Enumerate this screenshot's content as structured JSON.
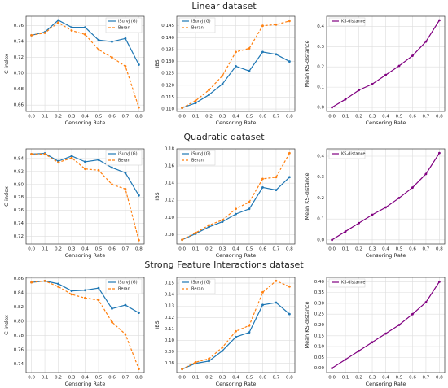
{
  "row_titles": [
    "Linear dataset",
    "Quadratic dataset",
    "Strong Feature Interactions dataset"
  ],
  "chart_data": [
    {
      "type": "line",
      "xlabel": "Censoring Rate",
      "ylabel": "C-index",
      "x": [
        0,
        0.1,
        0.2,
        0.3,
        0.4,
        0.5,
        0.6,
        0.7,
        0.8
      ],
      "xlim": [
        -0.04,
        0.84
      ],
      "xticks": [
        {
          "value": 0,
          "label": "0.0"
        },
        0.1,
        0.2,
        0.3,
        0.4,
        0.5,
        0.6,
        0.7,
        0.8
      ],
      "ylim": [
        0.652,
        0.772
      ],
      "yticks": [
        0.66,
        0.68,
        {
          "value": 0.7,
          "label": "0.70"
        },
        0.72,
        0.74,
        0.76
      ],
      "grid": true,
      "legend": "upper right",
      "series": [
        {
          "name": "iSurvJ (G)",
          "color": "#1f77b4",
          "linestyle": "solid",
          "values": [
            0.748,
            0.752,
            0.767,
            0.758,
            0.758,
            0.742,
            0.74,
            0.744,
            0.711
          ]
        },
        {
          "name": "Beran",
          "color": "#ff7f0e",
          "linestyle": "dashed",
          "values": [
            0.748,
            0.751,
            0.764,
            0.754,
            0.749,
            0.73,
            0.72,
            0.709,
            0.657
          ]
        }
      ]
    },
    {
      "type": "line",
      "xlabel": "Censoring Rate",
      "ylabel": "IBS",
      "x": [
        0,
        0.1,
        0.2,
        0.3,
        0.4,
        0.5,
        0.6,
        0.7,
        0.8
      ],
      "xlim": [
        -0.04,
        0.84
      ],
      "xticks": [
        {
          "value": 0,
          "label": "0.0"
        },
        0.1,
        0.2,
        0.3,
        0.4,
        0.5,
        0.6,
        0.7,
        0.8
      ],
      "ylim": [
        0.109,
        0.149
      ],
      "yticks": [
        {
          "value": 0.11,
          "label": "0.110"
        },
        0.115,
        {
          "value": 0.12,
          "label": "0.120"
        },
        0.125,
        {
          "value": 0.13,
          "label": "0.130"
        },
        0.135,
        {
          "value": 0.14,
          "label": "0.140"
        },
        0.145
      ],
      "grid": true,
      "legend": "upper left",
      "series": [
        {
          "name": "iSurvJ (G)",
          "color": "#1f77b4",
          "linestyle": "solid",
          "values": [
            0.1105,
            0.1125,
            0.116,
            0.1205,
            0.128,
            0.126,
            0.134,
            0.133,
            0.13
          ]
        },
        {
          "name": "Beran",
          "color": "#ff7f0e",
          "linestyle": "dashed",
          "values": [
            0.1105,
            0.1135,
            0.118,
            0.124,
            0.134,
            0.1355,
            0.145,
            0.1455,
            0.147
          ]
        }
      ]
    },
    {
      "type": "line",
      "xlabel": "Censoring Rate",
      "ylabel": "Mean KS-distance",
      "x": [
        0,
        0.1,
        0.2,
        0.3,
        0.4,
        0.5,
        0.6,
        0.7,
        0.8
      ],
      "xlim": [
        -0.04,
        0.84
      ],
      "xticks": [
        {
          "value": 0,
          "label": "0.0"
        },
        0.1,
        0.2,
        0.3,
        0.4,
        0.5,
        0.6,
        0.7,
        0.8
      ],
      "ylim": [
        -0.02,
        0.45
      ],
      "yticks": [
        {
          "value": 0,
          "label": "0.0"
        },
        0.1,
        0.2,
        0.3,
        0.4
      ],
      "grid": true,
      "legend": "upper left",
      "series": [
        {
          "name": "KS-distance",
          "color": "#800080",
          "linestyle": "solid",
          "values": [
            0,
            0.04,
            0.085,
            0.115,
            0.16,
            0.205,
            0.255,
            0.325,
            0.43
          ]
        }
      ]
    },
    {
      "type": "line",
      "xlabel": "Censoring Rate",
      "ylabel": "C-index",
      "x": [
        0,
        0.1,
        0.2,
        0.3,
        0.4,
        0.5,
        0.6,
        0.7,
        0.8
      ],
      "xlim": [
        -0.04,
        0.84
      ],
      "xticks": [
        {
          "value": 0,
          "label": "0.0"
        },
        0.1,
        0.2,
        0.3,
        0.4,
        0.5,
        0.6,
        0.7,
        0.8
      ],
      "ylim": [
        0.708,
        0.855
      ],
      "yticks": [
        0.72,
        0.74,
        0.76,
        0.78,
        {
          "value": 0.8,
          "label": "0.80"
        },
        0.82,
        0.84
      ],
      "grid": true,
      "legend": "upper right",
      "series": [
        {
          "name": "iSurvJ (G)",
          "color": "#1f77b4",
          "linestyle": "solid",
          "values": [
            0.847,
            0.848,
            0.836,
            0.844,
            0.835,
            0.838,
            0.826,
            0.818,
            0.783
          ]
        },
        {
          "name": "Beran",
          "color": "#ff7f0e",
          "linestyle": "dashed",
          "values": [
            0.847,
            0.847,
            0.834,
            0.841,
            0.824,
            0.822,
            0.8,
            0.793,
            0.714
          ]
        }
      ]
    },
    {
      "type": "line",
      "xlabel": "Censoring Rate",
      "ylabel": "IBS",
      "x": [
        0,
        0.1,
        0.2,
        0.3,
        0.4,
        0.5,
        0.6,
        0.7,
        0.8
      ],
      "xlim": [
        -0.04,
        0.84
      ],
      "xticks": [
        {
          "value": 0,
          "label": "0.0"
        },
        0.1,
        0.2,
        0.3,
        0.4,
        0.5,
        0.6,
        0.7,
        0.8
      ],
      "ylim": [
        0.069,
        0.18
      ],
      "yticks": [
        0.08,
        {
          "value": 0.1,
          "label": "0.10"
        },
        0.12,
        0.14,
        0.16,
        0.18
      ],
      "grid": true,
      "legend": "upper left",
      "series": [
        {
          "name": "iSurvJ (G)",
          "color": "#1f77b4",
          "linestyle": "solid",
          "values": [
            0.074,
            0.081,
            0.089,
            0.095,
            0.104,
            0.11,
            0.135,
            0.132,
            0.147
          ]
        },
        {
          "name": "Beran",
          "color": "#ff7f0e",
          "linestyle": "dashed",
          "values": [
            0.074,
            0.082,
            0.091,
            0.097,
            0.11,
            0.118,
            0.145,
            0.147,
            0.175
          ]
        }
      ]
    },
    {
      "type": "line",
      "xlabel": "Censoring Rate",
      "ylabel": "Mean KS-distance",
      "x": [
        0,
        0.1,
        0.2,
        0.3,
        0.4,
        0.5,
        0.6,
        0.7,
        0.8
      ],
      "xlim": [
        -0.04,
        0.84
      ],
      "xticks": [
        {
          "value": 0,
          "label": "0.0"
        },
        0.1,
        0.2,
        0.3,
        0.4,
        0.5,
        0.6,
        0.7,
        0.8
      ],
      "ylim": [
        -0.02,
        0.435
      ],
      "yticks": [
        {
          "value": 0,
          "label": "0.0"
        },
        0.1,
        0.2,
        0.3,
        0.4
      ],
      "grid": true,
      "legend": "upper left",
      "series": [
        {
          "name": "KS-distance",
          "color": "#800080",
          "linestyle": "solid",
          "values": [
            0,
            0.04,
            0.08,
            0.12,
            0.155,
            0.2,
            0.25,
            0.315,
            0.415
          ]
        }
      ]
    },
    {
      "type": "line",
      "xlabel": "Censoring Rate",
      "ylabel": "C-index",
      "x": [
        0,
        0.1,
        0.2,
        0.3,
        0.4,
        0.5,
        0.6,
        0.7,
        0.8
      ],
      "xlim": [
        -0.04,
        0.84
      ],
      "xticks": [
        {
          "value": 0,
          "label": "0.0"
        },
        0.1,
        0.2,
        0.3,
        0.4,
        0.5,
        0.6,
        0.7,
        0.8
      ],
      "ylim": [
        0.728,
        0.862
      ],
      "yticks": [
        0.74,
        0.76,
        0.78,
        {
          "value": 0.8,
          "label": "0.80"
        },
        0.82,
        0.84,
        0.86
      ],
      "grid": true,
      "legend": "upper right",
      "series": [
        {
          "name": "iSurvJ (G)",
          "color": "#1f77b4",
          "linestyle": "solid",
          "values": [
            0.855,
            0.857,
            0.853,
            0.843,
            0.844,
            0.847,
            0.818,
            0.823,
            0.812
          ]
        },
        {
          "name": "Beran",
          "color": "#ff7f0e",
          "linestyle": "dashed",
          "values": [
            0.855,
            0.857,
            0.849,
            0.838,
            0.833,
            0.83,
            0.799,
            0.782,
            0.733
          ]
        }
      ]
    },
    {
      "type": "line",
      "xlabel": "Censoring Rate",
      "ylabel": "IBS",
      "x": [
        0,
        0.1,
        0.2,
        0.3,
        0.4,
        0.5,
        0.6,
        0.7,
        0.8
      ],
      "xlim": [
        -0.04,
        0.84
      ],
      "xticks": [
        {
          "value": 0,
          "label": "0.0"
        },
        0.1,
        0.2,
        0.3,
        0.4,
        0.5,
        0.6,
        0.7,
        0.8
      ],
      "ylim": [
        0.072,
        0.155
      ],
      "yticks": [
        0.08,
        0.09,
        {
          "value": 0.1,
          "label": "0.10"
        },
        0.11,
        0.12,
        0.13,
        0.14,
        0.15
      ],
      "grid": true,
      "legend": "upper left",
      "series": [
        {
          "name": "iSurvJ (G)",
          "color": "#1f77b4",
          "linestyle": "solid",
          "values": [
            0.075,
            0.08,
            0.082,
            0.091,
            0.103,
            0.107,
            0.131,
            0.133,
            0.123
          ]
        },
        {
          "name": "Beran",
          "color": "#ff7f0e",
          "linestyle": "dashed",
          "values": [
            0.075,
            0.081,
            0.084,
            0.094,
            0.108,
            0.113,
            0.142,
            0.152,
            0.147
          ]
        }
      ]
    },
    {
      "type": "line",
      "xlabel": "Censoring Rate",
      "ylabel": "Mean KS-distance",
      "x": [
        0,
        0.1,
        0.2,
        0.3,
        0.4,
        0.5,
        0.6,
        0.7,
        0.8
      ],
      "xlim": [
        -0.04,
        0.84
      ],
      "xticks": [
        {
          "value": 0,
          "label": "0.0"
        },
        0.1,
        0.2,
        0.3,
        0.4,
        0.5,
        0.6,
        0.7,
        0.8
      ],
      "ylim": [
        -0.02,
        0.42
      ],
      "yticks": [
        {
          "value": 0,
          "label": "0.00"
        },
        0.05,
        {
          "value": 0.1,
          "label": "0.10"
        },
        0.15,
        {
          "value": 0.2,
          "label": "0.20"
        },
        0.25,
        {
          "value": 0.3,
          "label": "0.30"
        },
        0.35,
        {
          "value": 0.4,
          "label": "0.40"
        }
      ],
      "grid": true,
      "legend": "upper left",
      "series": [
        {
          "name": "KS-distance",
          "color": "#800080",
          "linestyle": "solid",
          "values": [
            0,
            0.04,
            0.08,
            0.12,
            0.16,
            0.2,
            0.25,
            0.305,
            0.4
          ]
        }
      ]
    }
  ]
}
